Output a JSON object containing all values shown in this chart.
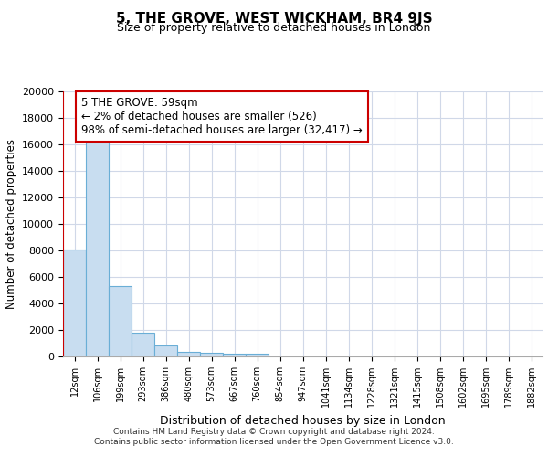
{
  "title": "5, THE GROVE, WEST WICKHAM, BR4 9JS",
  "subtitle": "Size of property relative to detached houses in London",
  "xlabel": "Distribution of detached houses by size in London",
  "ylabel": "Number of detached properties",
  "bar_color": "#c8ddf0",
  "bar_edge_color": "#6aaed6",
  "annotation_box_edge_color": "#cc0000",
  "vline_color": "#cc0000",
  "annotation_text_line1": "5 THE GROVE: 59sqm",
  "annotation_text_line2": "← 2% of detached houses are smaller (526)",
  "annotation_text_line3": "98% of semi-detached houses are larger (32,417) →",
  "categories": [
    "12sqm",
    "106sqm",
    "199sqm",
    "293sqm",
    "386sqm",
    "480sqm",
    "573sqm",
    "667sqm",
    "760sqm",
    "854sqm",
    "947sqm",
    "1041sqm",
    "1134sqm",
    "1228sqm",
    "1321sqm",
    "1415sqm",
    "1508sqm",
    "1602sqm",
    "1695sqm",
    "1789sqm",
    "1882sqm"
  ],
  "values": [
    8100,
    16600,
    5300,
    1800,
    800,
    350,
    300,
    200,
    200,
    0,
    0,
    0,
    0,
    0,
    0,
    0,
    0,
    0,
    0,
    0,
    0
  ],
  "ylim": [
    0,
    20000
  ],
  "yticks": [
    0,
    2000,
    4000,
    6000,
    8000,
    10000,
    12000,
    14000,
    16000,
    18000,
    20000
  ],
  "footer_line1": "Contains HM Land Registry data © Crown copyright and database right 2024.",
  "footer_line2": "Contains public sector information licensed under the Open Government Licence v3.0.",
  "background_color": "#ffffff",
  "plot_background_color": "#ffffff",
  "grid_color": "#d0d8e8"
}
